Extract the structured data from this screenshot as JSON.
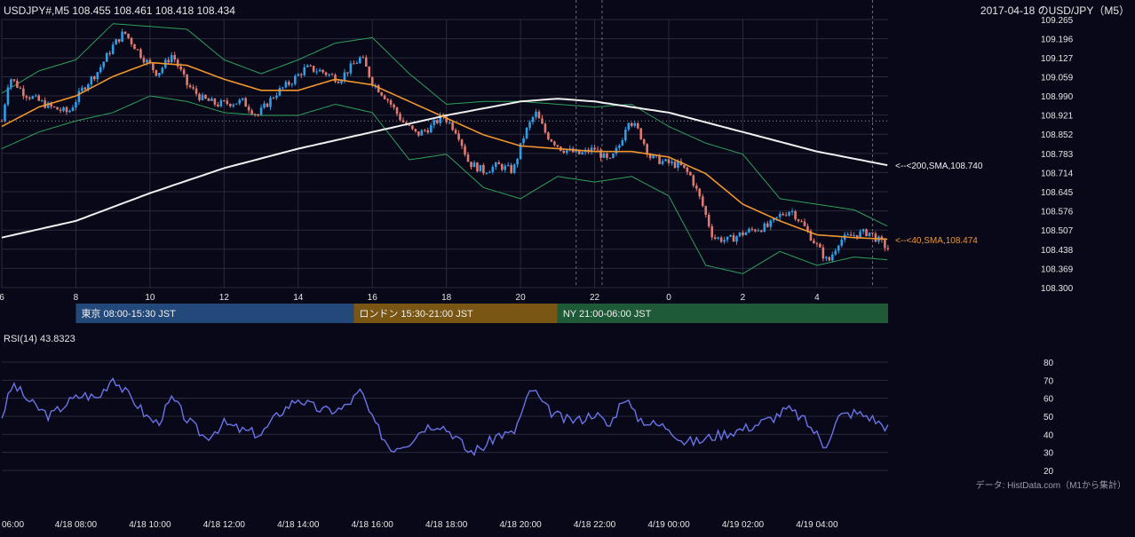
{
  "header": {
    "symbol_line": "USDJPY#,M5 108.455 108.461 108.418 108.434",
    "title_right": "2017-04-18 のUSD/JPY（M5）"
  },
  "colors": {
    "background": "#080818",
    "grid": "#2a2a3c",
    "up_candle": "#2f9ee8",
    "down_candle": "#e07a6e",
    "sma40": "#f0962e",
    "sma200": "#f0f0f0",
    "bollinger": "#2fa05a",
    "rsi": "#6a74e8",
    "tokyo": "#22497a",
    "london": "#7a5614",
    "ny": "#1e5a38"
  },
  "sessions": [
    {
      "label": "東京 08:00-15:30 JST",
      "color": "#22497a",
      "start_hour": 8.0,
      "end_hour": 15.5
    },
    {
      "label": "ロンドン 15:30-21:00 JST",
      "color": "#7a5614",
      "start_hour": 15.5,
      "end_hour": 21.0
    },
    {
      "label": "NY 21:00-06:00 JST",
      "color": "#1e5a38",
      "start_hour": 21.0,
      "end_hour": 30.0
    }
  ],
  "annotations": {
    "sma200_label": "<--<200,SMA,108.740",
    "sma40_label": "<--<40,SMA,108.474"
  },
  "rsi_panel": {
    "label": "RSI(14) 43.8323",
    "ticks": [
      20,
      30,
      40,
      50,
      60,
      70,
      80
    ],
    "ylim": [
      20,
      80
    ]
  },
  "credit": "データ: HistData.com（M1から集計）",
  "x_top_ticks": [
    {
      "label": "6",
      "hour": 6
    },
    {
      "label": "8",
      "hour": 8
    },
    {
      "label": "10",
      "hour": 10
    },
    {
      "label": "12",
      "hour": 12
    },
    {
      "label": "14",
      "hour": 14
    },
    {
      "label": "16",
      "hour": 16
    },
    {
      "label": "18",
      "hour": 18
    },
    {
      "label": "20",
      "hour": 20
    },
    {
      "label": "22",
      "hour": 22
    },
    {
      "label": "0",
      "hour": 24
    },
    {
      "label": "2",
      "hour": 26
    },
    {
      "label": "4",
      "hour": 28
    }
  ],
  "x_bottom_ticks": [
    {
      "label": "06:00",
      "hour": 6
    },
    {
      "label": "4/18 08:00",
      "hour": 8
    },
    {
      "label": "4/18 10:00",
      "hour": 10
    },
    {
      "label": "4/18 12:00",
      "hour": 12
    },
    {
      "label": "4/18 14:00",
      "hour": 14
    },
    {
      "label": "4/18 16:00",
      "hour": 16
    },
    {
      "label": "4/18 18:00",
      "hour": 18
    },
    {
      "label": "4/18 20:00",
      "hour": 20
    },
    {
      "label": "4/18 22:00",
      "hour": 22
    },
    {
      "label": "4/19 00:00",
      "hour": 24
    },
    {
      "label": "4/19 02:00",
      "hour": 26
    },
    {
      "label": "4/19 04:00",
      "hour": 28
    }
  ],
  "event_lines_hours": [
    21.5,
    22.2,
    29.5
  ],
  "chart_data": {
    "type": "candlestick",
    "x_unit": "hour (JST, 2017-04-18; 24+ = 4/19)",
    "x_range_hours": [
      6.0,
      29.92
    ],
    "ylim": [
      108.3,
      109.265
    ],
    "y_ticks": [
      108.3,
      108.369,
      108.438,
      108.507,
      108.576,
      108.645,
      108.714,
      108.783,
      108.852,
      108.921,
      108.99,
      109.059,
      109.127,
      109.196,
      109.265
    ],
    "reference_level": 108.9,
    "close_anchors": [
      [
        6.0,
        108.9
      ],
      [
        6.2,
        109.06
      ],
      [
        6.6,
        109.0
      ],
      [
        7.3,
        108.95
      ],
      [
        7.8,
        108.93
      ],
      [
        8.2,
        109.02
      ],
      [
        8.6,
        109.08
      ],
      [
        9.0,
        109.17
      ],
      [
        9.3,
        109.22
      ],
      [
        9.8,
        109.13
      ],
      [
        10.2,
        109.07
      ],
      [
        10.6,
        109.14
      ],
      [
        11.0,
        109.03
      ],
      [
        11.4,
        108.98
      ],
      [
        11.8,
        108.96
      ],
      [
        12.5,
        108.97
      ],
      [
        12.9,
        108.92
      ],
      [
        13.4,
        109.0
      ],
      [
        13.8,
        109.04
      ],
      [
        14.2,
        109.09
      ],
      [
        14.6,
        109.08
      ],
      [
        15.1,
        109.05
      ],
      [
        15.7,
        109.13
      ],
      [
        16.0,
        109.04
      ],
      [
        16.4,
        108.98
      ],
      [
        16.8,
        108.9
      ],
      [
        17.2,
        108.85
      ],
      [
        17.6,
        108.88
      ],
      [
        17.9,
        108.92
      ],
      [
        18.3,
        108.86
      ],
      [
        18.6,
        108.75
      ],
      [
        19.0,
        108.72
      ],
      [
        19.4,
        108.74
      ],
      [
        19.8,
        108.72
      ],
      [
        20.1,
        108.85
      ],
      [
        20.4,
        108.93
      ],
      [
        20.7,
        108.85
      ],
      [
        21.1,
        108.8
      ],
      [
        21.6,
        108.78
      ],
      [
        22.0,
        108.8
      ],
      [
        22.4,
        108.75
      ],
      [
        22.7,
        108.82
      ],
      [
        22.9,
        108.91
      ],
      [
        23.2,
        108.86
      ],
      [
        23.5,
        108.77
      ],
      [
        23.9,
        108.75
      ],
      [
        24.3,
        108.74
      ],
      [
        24.6,
        108.7
      ],
      [
        24.9,
        108.6
      ],
      [
        25.2,
        108.48
      ],
      [
        25.6,
        108.47
      ],
      [
        25.9,
        108.49
      ],
      [
        26.3,
        108.51
      ],
      [
        26.7,
        108.52
      ],
      [
        27.0,
        108.56
      ],
      [
        27.3,
        108.58
      ],
      [
        27.6,
        108.53
      ],
      [
        27.9,
        108.47
      ],
      [
        28.3,
        108.39
      ],
      [
        28.6,
        108.47
      ],
      [
        29.0,
        108.49
      ],
      [
        29.4,
        108.5
      ],
      [
        29.92,
        108.44
      ]
    ],
    "sma40_anchors": [
      [
        6.0,
        108.88
      ],
      [
        7.0,
        108.95
      ],
      [
        8.0,
        108.99
      ],
      [
        9.0,
        109.06
      ],
      [
        10.0,
        109.11
      ],
      [
        11.0,
        109.1
      ],
      [
        12.0,
        109.05
      ],
      [
        13.0,
        109.01
      ],
      [
        14.0,
        109.01
      ],
      [
        15.0,
        109.05
      ],
      [
        16.0,
        109.03
      ],
      [
        17.0,
        108.97
      ],
      [
        18.0,
        108.91
      ],
      [
        19.0,
        108.85
      ],
      [
        20.0,
        108.81
      ],
      [
        21.0,
        108.8
      ],
      [
        22.0,
        108.79
      ],
      [
        23.0,
        108.79
      ],
      [
        24.0,
        108.77
      ],
      [
        25.0,
        108.71
      ],
      [
        26.0,
        108.6
      ],
      [
        27.0,
        108.54
      ],
      [
        28.0,
        108.49
      ],
      [
        29.0,
        108.48
      ],
      [
        29.92,
        108.474
      ]
    ],
    "sma200_anchors": [
      [
        6.0,
        108.48
      ],
      [
        8.0,
        108.54
      ],
      [
        10.0,
        108.64
      ],
      [
        12.0,
        108.73
      ],
      [
        14.0,
        108.8
      ],
      [
        16.0,
        108.86
      ],
      [
        18.0,
        108.92
      ],
      [
        20.0,
        108.97
      ],
      [
        21.0,
        108.98
      ],
      [
        22.0,
        108.97
      ],
      [
        24.0,
        108.93
      ],
      [
        26.0,
        108.86
      ],
      [
        28.0,
        108.79
      ],
      [
        29.92,
        108.74
      ]
    ],
    "bollinger_upper_anchors": [
      [
        6.0,
        109.0
      ],
      [
        7.0,
        109.08
      ],
      [
        8.0,
        109.12
      ],
      [
        9.0,
        109.25
      ],
      [
        10.0,
        109.24
      ],
      [
        11.0,
        109.23
      ],
      [
        12.0,
        109.12
      ],
      [
        13.0,
        109.07
      ],
      [
        14.0,
        109.12
      ],
      [
        15.0,
        109.18
      ],
      [
        16.0,
        109.2
      ],
      [
        17.0,
        109.07
      ],
      [
        18.0,
        108.96
      ],
      [
        19.0,
        108.97
      ],
      [
        20.0,
        108.97
      ],
      [
        21.0,
        108.96
      ],
      [
        22.0,
        108.95
      ],
      [
        23.0,
        108.96
      ],
      [
        24.0,
        108.88
      ],
      [
        25.0,
        108.82
      ],
      [
        26.0,
        108.78
      ],
      [
        27.0,
        108.62
      ],
      [
        28.0,
        108.6
      ],
      [
        29.0,
        108.58
      ],
      [
        29.92,
        108.52
      ]
    ],
    "bollinger_lower_anchors": [
      [
        6.0,
        108.8
      ],
      [
        7.0,
        108.86
      ],
      [
        8.0,
        108.9
      ],
      [
        9.0,
        108.93
      ],
      [
        10.0,
        108.99
      ],
      [
        11.0,
        108.97
      ],
      [
        12.0,
        108.93
      ],
      [
        13.0,
        108.92
      ],
      [
        14.0,
        108.92
      ],
      [
        15.0,
        108.96
      ],
      [
        16.0,
        108.93
      ],
      [
        17.0,
        108.76
      ],
      [
        18.0,
        108.78
      ],
      [
        19.0,
        108.66
      ],
      [
        20.0,
        108.62
      ],
      [
        21.0,
        108.7
      ],
      [
        22.0,
        108.68
      ],
      [
        23.0,
        108.7
      ],
      [
        24.0,
        108.63
      ],
      [
        25.0,
        108.38
      ],
      [
        26.0,
        108.35
      ],
      [
        27.0,
        108.43
      ],
      [
        28.0,
        108.38
      ],
      [
        29.0,
        108.41
      ],
      [
        29.92,
        108.4
      ]
    ],
    "rsi_anchors": [
      [
        6.0,
        50
      ],
      [
        6.3,
        68
      ],
      [
        6.8,
        57
      ],
      [
        7.3,
        50
      ],
      [
        7.8,
        58
      ],
      [
        8.2,
        62
      ],
      [
        8.6,
        60
      ],
      [
        9.0,
        72
      ],
      [
        9.3,
        64
      ],
      [
        9.6,
        58
      ],
      [
        9.9,
        50
      ],
      [
        10.2,
        46
      ],
      [
        10.6,
        60
      ],
      [
        11.0,
        48
      ],
      [
        11.5,
        38
      ],
      [
        12.0,
        46
      ],
      [
        12.5,
        42
      ],
      [
        13.0,
        40
      ],
      [
        13.5,
        52
      ],
      [
        14.0,
        60
      ],
      [
        14.3,
        56
      ],
      [
        14.7,
        53
      ],
      [
        15.2,
        54
      ],
      [
        15.7,
        64
      ],
      [
        16.0,
        48
      ],
      [
        16.5,
        32
      ],
      [
        17.0,
        36
      ],
      [
        17.4,
        44
      ],
      [
        17.8,
        46
      ],
      [
        18.2,
        40
      ],
      [
        18.6,
        30
      ],
      [
        19.0,
        33
      ],
      [
        19.4,
        40
      ],
      [
        19.8,
        40
      ],
      [
        20.1,
        55
      ],
      [
        20.3,
        66
      ],
      [
        20.7,
        54
      ],
      [
        21.2,
        48
      ],
      [
        21.6,
        48
      ],
      [
        22.0,
        52
      ],
      [
        22.4,
        44
      ],
      [
        22.8,
        62
      ],
      [
        23.1,
        50
      ],
      [
        23.5,
        46
      ],
      [
        24.0,
        44
      ],
      [
        24.4,
        36
      ],
      [
        24.8,
        36
      ],
      [
        25.2,
        39
      ],
      [
        25.6,
        41
      ],
      [
        26.0,
        43
      ],
      [
        26.3,
        45
      ],
      [
        26.8,
        49
      ],
      [
        27.2,
        54
      ],
      [
        27.6,
        49
      ],
      [
        28.0,
        40
      ],
      [
        28.2,
        33
      ],
      [
        28.6,
        50
      ],
      [
        29.0,
        52
      ],
      [
        29.4,
        50
      ],
      [
        29.7,
        46
      ],
      [
        29.92,
        44
      ]
    ]
  }
}
